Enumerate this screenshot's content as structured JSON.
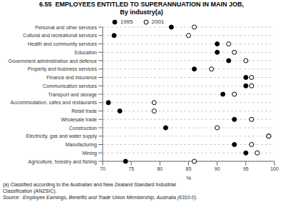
{
  "chart_data": {
    "type": "dot",
    "orientation": "horizontal",
    "title": "6.55  EMPLOYEES ENTITLED TO SUPERANNUATION IN MAIN JOB,",
    "subtitle": "By industry(a)",
    "xlabel": "%",
    "categories": [
      "Agriculture, forestry and fishing",
      "Mining",
      "Manufacturing",
      "Electricity, gas and water supply",
      "Construction",
      "Wholesale trade",
      "Retail trade",
      "Accommodation, cafes and restaurants",
      "Transport and storage",
      "Communication services",
      "Finance and insurance",
      "Property and business services",
      "Government administration and defence",
      "Education",
      "Health and community services",
      "Cultural and recreational services",
      "Personal and other services"
    ],
    "series": [
      {
        "name": "1995",
        "color": "#000000",
        "marker": "circle",
        "values": [
          74,
          95,
          93,
          99,
          81,
          93,
          73,
          71,
          91,
          95,
          95,
          86,
          92,
          90,
          90,
          72,
          82
        ]
      },
      {
        "name": "2001",
        "color": "#ffffff",
        "marker": "circle",
        "values": [
          86,
          97,
          96,
          99,
          90,
          96,
          79,
          79,
          93,
          96,
          96,
          89,
          95,
          93,
          92,
          85,
          86
        ]
      }
    ],
    "xlim": [
      70,
      100
    ],
    "xticks": [
      70,
      75,
      80,
      85,
      90,
      95,
      100
    ],
    "grid": true,
    "legend": "top",
    "annotations": [
      "(a) Classified according to the Australian and New Zealand Standard Industrial",
      "Classification (ANZSIC).",
      "Source:  Employee Earnings, Benefits and Trade Union Membership, Australia (6310.0)."
    ]
  }
}
